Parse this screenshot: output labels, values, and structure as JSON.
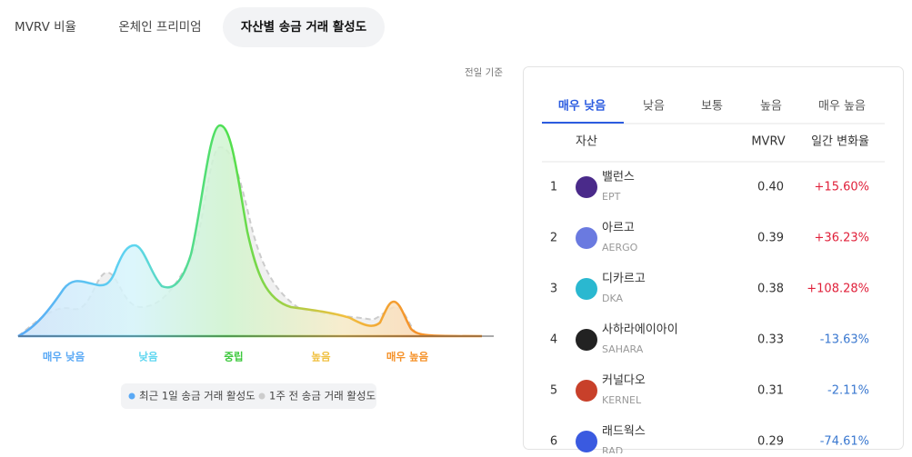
{
  "tabs": [
    "MVRV 비율",
    "온체인 프리미엄",
    "자산별 송금 거래 활성도"
  ],
  "note": "전일 기준",
  "chart": {
    "labels": [
      "매우 낮음",
      "낮음",
      "중립",
      "높음",
      "매우 높음"
    ],
    "legend": [
      "최근 1일 송금 거래 활성도",
      "1주 전 송금 거래 활성도"
    ]
  },
  "panel": {
    "tabs": [
      "매우 낮음",
      "낮음",
      "보통",
      "높음",
      "매우 높음"
    ],
    "headers": [
      "자산",
      "MVRV",
      "일간 변화율"
    ],
    "rows": [
      {
        "rank": "1",
        "name": "밸런스",
        "ticker": "EPT",
        "mvrv": "0.40",
        "change": "+15.60%"
      },
      {
        "rank": "2",
        "name": "아르고",
        "ticker": "AERGO",
        "mvrv": "0.39",
        "change": "+36.23%"
      },
      {
        "rank": "3",
        "name": "디카르고",
        "ticker": "DKA",
        "mvrv": "0.38",
        "change": "+108.28%"
      },
      {
        "rank": "4",
        "name": "사하라에이아이",
        "ticker": "SAHARA",
        "mvrv": "0.33",
        "change": "-13.63%"
      },
      {
        "rank": "5",
        "name": "커널다오",
        "ticker": "KERNEL",
        "mvrv": "0.31",
        "change": "-2.11%"
      },
      {
        "rank": "6",
        "name": "래드웍스",
        "ticker": "RAD",
        "mvrv": "0.29",
        "change": "-74.61%"
      }
    ]
  }
}
